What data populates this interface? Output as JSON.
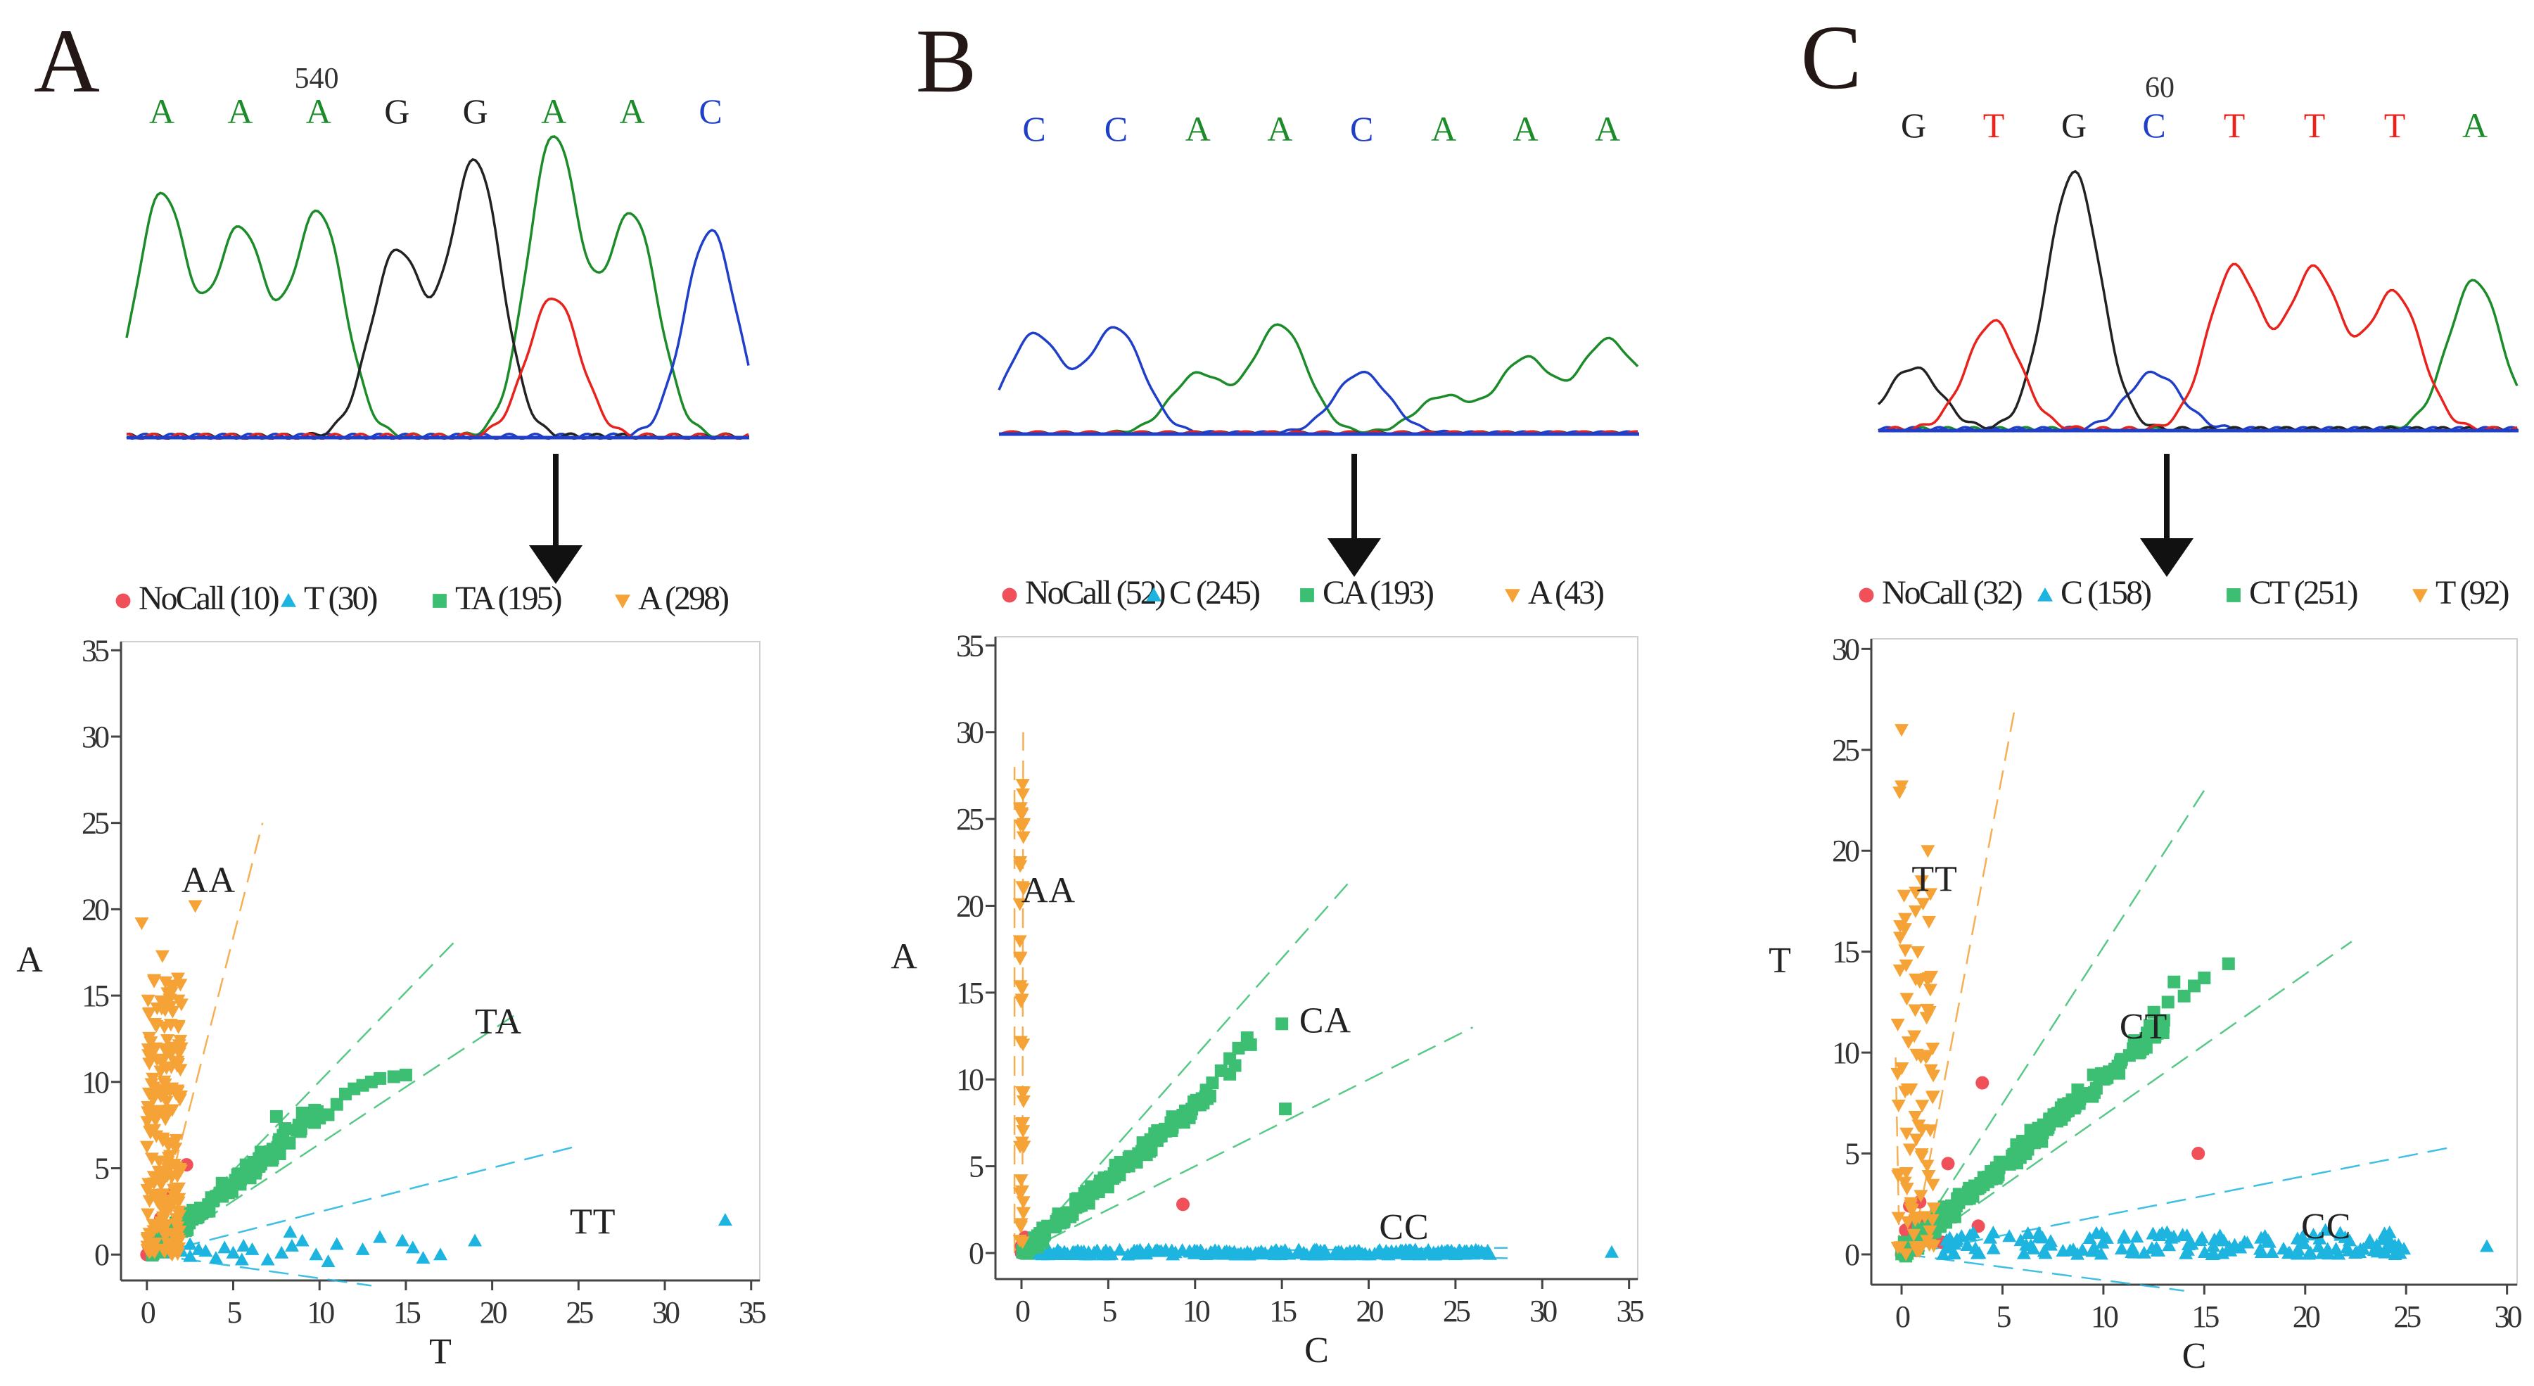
{
  "colors": {
    "A": "#1c8c2a",
    "C": "#1f3fc8",
    "G": "#222222",
    "T": "#e8221c",
    "nocall": "#f0505a",
    "hom_x": "#1db4e0",
    "het": "#3cbf73",
    "hom_y": "#f5a236"
  },
  "panels": [
    {
      "label": "A",
      "chromatogram": {
        "position_label": "540",
        "bases": [
          "A",
          "A",
          "A",
          "G",
          "G",
          "A",
          "A",
          "C"
        ],
        "peaks": [
          {
            "base": "A",
            "height": 0.8
          },
          {
            "base": "A",
            "height": 0.68
          },
          {
            "base": "A",
            "height": 0.74
          },
          {
            "base": "G",
            "height": 0.61
          },
          {
            "base": "G",
            "height": 0.91
          },
          {
            "base": "A",
            "height": 0.99
          },
          {
            "base": "T",
            "height": 0.46
          },
          {
            "base": "A",
            "height": 0.73
          },
          {
            "base": "C",
            "height": 0.68
          }
        ]
      },
      "legend": [
        {
          "marker": "nocall",
          "label": "NoCall (10)"
        },
        {
          "marker": "hom_x",
          "label": "T (30)"
        },
        {
          "marker": "het",
          "label": "TA (195)"
        },
        {
          "marker": "hom_y",
          "label": "A (298)"
        }
      ]
    },
    {
      "label": "B",
      "chromatogram": {
        "position_label": "",
        "bases": [
          "C",
          "C",
          "A",
          "A",
          "C",
          "A",
          "A",
          "A"
        ],
        "peaks": [
          {
            "base": "C",
            "height": 0.62
          },
          {
            "base": "C",
            "height": 0.66
          },
          {
            "base": "A",
            "height": 0.37
          },
          {
            "base": "A",
            "height": 0.68
          },
          {
            "base": "C",
            "height": 0.38
          },
          {
            "base": "A",
            "height": 0.23
          },
          {
            "base": "A",
            "height": 0.47
          },
          {
            "base": "A",
            "height": 0.58
          },
          {
            "base": "A",
            "height": 0.63
          }
        ]
      },
      "legend": [
        {
          "marker": "nocall",
          "label": "NoCall (52)"
        },
        {
          "marker": "hom_x",
          "label": "C (245)"
        },
        {
          "marker": "het",
          "label": "CA (193)"
        },
        {
          "marker": "hom_y",
          "label": "A (43)"
        }
      ]
    },
    {
      "label": "C",
      "chromatogram": {
        "position_label": "60",
        "bases": [
          "G",
          "T",
          "G",
          "C",
          "T",
          "T",
          "T",
          "A"
        ],
        "peaks": [
          {
            "base": "G",
            "height": 0.24
          },
          {
            "base": "T",
            "height": 0.42
          },
          {
            "base": "G",
            "height": 1.0
          },
          {
            "base": "C",
            "height": 0.22
          },
          {
            "base": "T",
            "height": 0.63
          },
          {
            "base": "T",
            "height": 0.62
          },
          {
            "base": "T",
            "height": 0.53
          },
          {
            "base": "A",
            "height": 0.58
          }
        ]
      }
    }
  ],
  "chart_data": [
    {
      "type": "scatter",
      "xlabel": "T",
      "ylabel": "A",
      "xlim": [
        -1.5,
        35.5
      ],
      "ylim": [
        -1.5,
        35.5
      ],
      "xticks": [
        0,
        5,
        10,
        15,
        20,
        25,
        30,
        35
      ],
      "yticks": [
        0,
        5,
        10,
        15,
        20,
        25,
        30,
        35
      ],
      "cluster_labels": [
        {
          "text": "AA",
          "x": 2,
          "y": 21
        },
        {
          "text": "TA",
          "x": 19,
          "y": 12.8
        },
        {
          "text": "TT",
          "x": 24.5,
          "y": 1.2
        }
      ],
      "series": [
        {
          "name": "NoCall (10)",
          "marker": "nocall",
          "points": [
            [
              0,
              0
            ],
            [
              0.3,
              0.2
            ],
            [
              0.1,
              0.5
            ],
            [
              0.5,
              0.1
            ],
            [
              1.3,
              3.4
            ],
            [
              2.3,
              5.2
            ],
            [
              0.8,
              2.1
            ],
            [
              0.2,
              1
            ],
            [
              0.6,
              0.4
            ],
            [
              1,
              1.2
            ]
          ]
        },
        {
          "name": "T (30)",
          "marker": "hom_x",
          "points": [
            [
              0.5,
              0.3
            ],
            [
              1,
              0.1
            ],
            [
              1.5,
              0.4
            ],
            [
              2,
              0.2
            ],
            [
              2.5,
              -0.1
            ],
            [
              3,
              0.3
            ],
            [
              3.4,
              0.2
            ],
            [
              4,
              -0.2
            ],
            [
              4.5,
              0.4
            ],
            [
              5,
              0.1
            ],
            [
              5.6,
              0.5
            ],
            [
              6.1,
              0.3
            ],
            [
              7,
              -0.3
            ],
            [
              8.3,
              1.3
            ],
            [
              8.4,
              0.5
            ],
            [
              9,
              0.8
            ],
            [
              9.8,
              0
            ],
            [
              10.5,
              -0.4
            ],
            [
              11,
              0.6
            ],
            [
              12.5,
              0.3
            ],
            [
              13.5,
              1
            ],
            [
              14.8,
              0.8
            ],
            [
              15.4,
              0.4
            ],
            [
              16,
              -0.2
            ],
            [
              17,
              0
            ],
            [
              19,
              0.8
            ],
            [
              2.5,
              0.6
            ],
            [
              5.5,
              -0.3
            ],
            [
              7.8,
              0.1
            ],
            [
              33.5,
              2
            ]
          ]
        },
        {
          "name": "TA (195)",
          "marker": "het",
          "points_generator": {
            "x_from": 0.3,
            "x_to": 10,
            "slope": 0.82,
            "spread": 0.7,
            "count": 150
          },
          "points": [
            [
              10,
              7.9
            ],
            [
              10.5,
              8.1
            ],
            [
              11,
              8.7
            ],
            [
              11.5,
              9.3
            ],
            [
              12,
              9.6
            ],
            [
              12.5,
              9.8
            ],
            [
              13,
              10
            ],
            [
              13.5,
              10.2
            ],
            [
              14.3,
              10.3
            ],
            [
              15,
              10.4
            ],
            [
              8,
              7.3
            ],
            [
              9,
              8.2
            ],
            [
              7.5,
              8
            ],
            [
              8.8,
              7.5
            ]
          ]
        },
        {
          "name": "A (298)",
          "marker": "hom_y",
          "points_generator": {
            "x_from": 0,
            "x_to": 2,
            "y_from": 0,
            "y_to": 16.5,
            "count": 190
          },
          "points": [
            [
              -0.3,
              19.2
            ],
            [
              2.8,
              20.2
            ],
            [
              1.8,
              16
            ],
            [
              2,
              14.5
            ],
            [
              0.9,
              17.3
            ]
          ]
        }
      ],
      "boundary_lines": [
        {
          "marker": "hom_y",
          "x": [
            0.3,
            6.7
          ],
          "y": [
            0,
            25
          ]
        },
        {
          "marker": "het",
          "x": [
            0.3,
            18
          ],
          "y": [
            0,
            18.3
          ]
        },
        {
          "marker": "het",
          "x": [
            0.3,
            21.5
          ],
          "y": [
            0,
            14
          ]
        },
        {
          "marker": "hom_x",
          "x": [
            0.3,
            25
          ],
          "y": [
            0,
            6.3
          ]
        },
        {
          "marker": "hom_x",
          "x": [
            0.3,
            13
          ],
          "y": [
            0,
            -1.8
          ]
        }
      ]
    },
    {
      "type": "scatter",
      "xlabel": "C",
      "ylabel": "A",
      "xlim": [
        -1.5,
        35.5
      ],
      "ylim": [
        -1.5,
        35.5
      ],
      "xticks": [
        0,
        5,
        10,
        15,
        20,
        25,
        30,
        35
      ],
      "yticks": [
        0,
        5,
        10,
        15,
        20,
        25,
        30,
        35
      ],
      "cluster_labels": [
        {
          "text": "AA",
          "x": 0,
          "y": 20.2
        },
        {
          "text": "CA",
          "x": 16,
          "y": 12.7
        },
        {
          "text": "CC",
          "x": 20.6,
          "y": 0.8
        }
      ],
      "series": [
        {
          "name": "NoCall (52)",
          "marker": "nocall",
          "points": [
            [
              0,
              0
            ],
            [
              0.1,
              0.3
            ],
            [
              0.2,
              0.1
            ],
            [
              0.05,
              0.5
            ],
            [
              0.3,
              0.2
            ],
            [
              0.15,
              0.7
            ],
            [
              0,
              0.4
            ],
            [
              0.4,
              0
            ],
            [
              9.3,
              2.8
            ],
            [
              0.2,
              0.9
            ]
          ]
        },
        {
          "name": "C (245)",
          "marker": "hom_x",
          "points_generator": {
            "x_from": 0,
            "x_to": 27,
            "y_from": -0.1,
            "y_to": 0.2,
            "count": 240
          },
          "points": [
            [
              34,
              0.05
            ],
            [
              26.5,
              0.1
            ],
            [
              24,
              0.05
            ],
            [
              22.5,
              0
            ]
          ]
        },
        {
          "name": "CA (193)",
          "marker": "het",
          "points_generator": {
            "x_from": 0,
            "x_to": 11,
            "slope": 0.85,
            "spread": 0.6,
            "count": 170
          },
          "points": [
            [
              11.5,
              10.5
            ],
            [
              12,
              11.2
            ],
            [
              12.3,
              10.8
            ],
            [
              12.5,
              11.8
            ],
            [
              13,
              12.4
            ],
            [
              13.2,
              12
            ],
            [
              15,
              13.2
            ],
            [
              15.2,
              8.3
            ],
            [
              12,
              10.3
            ],
            [
              11,
              9.8
            ]
          ]
        },
        {
          "name": "A (43)",
          "marker": "hom_y",
          "points_generator": {
            "x_from": -0.1,
            "x_to": 0.15,
            "y_from": 0,
            "y_to": 27,
            "count": 43
          },
          "points": []
        }
      ],
      "boundary_lines": [
        {
          "marker": "hom_y",
          "x": [
            0.05,
            0.1
          ],
          "y": [
            0,
            30
          ]
        },
        {
          "marker": "hom_y",
          "x": [
            -0.4,
            -0.4
          ],
          "y": [
            0,
            28
          ]
        },
        {
          "marker": "het",
          "x": [
            0,
            19
          ],
          "y": [
            0,
            21.5
          ]
        },
        {
          "marker": "het",
          "x": [
            0,
            26
          ],
          "y": [
            0,
            13
          ]
        },
        {
          "marker": "hom_x",
          "x": [
            0,
            28
          ],
          "y": [
            0,
            0.3
          ]
        },
        {
          "marker": "hom_x",
          "x": [
            0,
            28
          ],
          "y": [
            0,
            -0.3
          ]
        }
      ]
    },
    {
      "type": "scatter",
      "xlabel": "C",
      "ylabel": "T",
      "xlim": [
        -1.5,
        30.5
      ],
      "ylim": [
        -1.5,
        30.5
      ],
      "xticks": [
        0,
        5,
        10,
        15,
        20,
        25,
        30
      ],
      "yticks": [
        0,
        5,
        10,
        15,
        20,
        25,
        30
      ],
      "legend_labels": [
        "NoCall (32)",
        "C (158)",
        "CT (251)",
        "T (92)"
      ],
      "cluster_labels": [
        {
          "text": "TT",
          "x": 0.5,
          "y": 18
        },
        {
          "text": "CT",
          "x": 10.8,
          "y": 10.7
        },
        {
          "text": "CC",
          "x": 19.8,
          "y": 0.8
        }
      ],
      "series": [
        {
          "name": "NoCall (32)",
          "marker": "nocall",
          "points": [
            [
              0,
              0
            ],
            [
              0.1,
              0.5
            ],
            [
              0.3,
              0.9
            ],
            [
              0.5,
              1.3
            ],
            [
              0.6,
              1.7
            ],
            [
              0.8,
              0.6
            ],
            [
              0.2,
              1.2
            ],
            [
              1,
              1.6
            ],
            [
              2,
              0.6
            ],
            [
              2.3,
              4.5
            ],
            [
              4,
              8.5
            ],
            [
              3.8,
              1.4
            ],
            [
              14.7,
              5
            ],
            [
              0.4,
              2.4
            ],
            [
              0.9,
              2.6
            ],
            [
              0.7,
              0.2
            ],
            [
              1.3,
              1
            ]
          ]
        },
        {
          "name": "C (158)",
          "marker": "hom_x",
          "points_generator": {
            "x_from": 0.5,
            "x_to": 25,
            "y_from": 0,
            "y_to": 1.1,
            "count": 150
          },
          "points": [
            [
              29,
              0.4
            ],
            [
              21,
              1.2
            ],
            [
              23.2,
              0.7
            ]
          ]
        },
        {
          "name": "CT (251)",
          "marker": "het",
          "points_generator": {
            "x_from": 0,
            "x_to": 13,
            "slope": 0.88,
            "spread": 0.7,
            "count": 230
          },
          "points": [
            [
              13.2,
              12.5
            ],
            [
              14,
              12.8
            ],
            [
              14.5,
              13.3
            ],
            [
              15,
              13.7
            ],
            [
              16.2,
              14.4
            ],
            [
              12.5,
              12
            ],
            [
              13.5,
              13.5
            ]
          ]
        },
        {
          "name": "T (92)",
          "marker": "hom_y",
          "points_generator": {
            "x_from": -0.3,
            "x_to": 1.6,
            "y_from": 0,
            "y_to": 18,
            "count": 85
          },
          "points": [
            [
              0,
              26
            ],
            [
              0,
              23.2
            ],
            [
              -0.1,
              22.9
            ],
            [
              1.3,
              20
            ],
            [
              1,
              18.5
            ]
          ]
        }
      ],
      "boundary_lines": [
        {
          "marker": "hom_y",
          "x": [
            0.5,
            5.6
          ],
          "y": [
            0,
            27
          ]
        },
        {
          "marker": "hom_y",
          "x": [
            -0.1,
            -0.3
          ],
          "y": [
            0,
            10
          ]
        },
        {
          "marker": "het",
          "x": [
            0.2,
            15
          ],
          "y": [
            0,
            23
          ]
        },
        {
          "marker": "het",
          "x": [
            0.2,
            22.3
          ],
          "y": [
            0,
            15.5
          ]
        },
        {
          "marker": "hom_x",
          "x": [
            0.2,
            27.2
          ],
          "y": [
            0,
            5.3
          ]
        },
        {
          "marker": "hom_x",
          "x": [
            0.2,
            14
          ],
          "y": [
            0,
            -1.8
          ]
        }
      ]
    }
  ]
}
